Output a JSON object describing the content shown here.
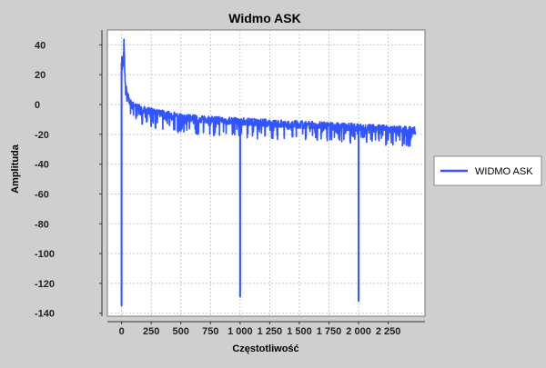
{
  "chart_data": {
    "type": "line",
    "title": "Widmo ASK",
    "xlabel": "Częstotliwość",
    "ylabel": "Amplituda",
    "xlim": [
      -120,
      2560
    ],
    "ylim": [
      -142,
      50
    ],
    "x_ticks": [
      0,
      250,
      500,
      750,
      1000,
      1250,
      1500,
      1750,
      2000,
      2250
    ],
    "x_tick_labels": [
      "0",
      "250",
      "500",
      "750",
      "1 000",
      "1 250",
      "1 500",
      "1 750",
      "2 000",
      "2 250"
    ],
    "y_ticks": [
      40,
      20,
      0,
      -20,
      -40,
      -60,
      -80,
      -100,
      -120,
      -140
    ],
    "y_tick_labels": [
      "40",
      "20",
      "0",
      "-20",
      "-40",
      "-60",
      "-80",
      "-100",
      "-120",
      "-140"
    ],
    "grid": true,
    "legend_position": "right",
    "series": [
      {
        "name": "WIDMO ASK",
        "color": "#3355ff",
        "x_range": [
          0,
          2480
        ],
        "peak": {
          "x": 20,
          "y": 42
        },
        "envelope_points": [
          [
            0,
            28
          ],
          [
            50,
            3
          ],
          [
            150,
            -2
          ],
          [
            300,
            -5
          ],
          [
            500,
            -8
          ],
          [
            750,
            -10
          ],
          [
            1000,
            -11
          ],
          [
            1500,
            -13
          ],
          [
            2000,
            -15
          ],
          [
            2480,
            -17
          ]
        ],
        "dips": [
          {
            "x": 0,
            "y": -135
          },
          {
            "x": 1000,
            "y": -129
          },
          {
            "x": 2000,
            "y": -132
          }
        ]
      }
    ]
  }
}
